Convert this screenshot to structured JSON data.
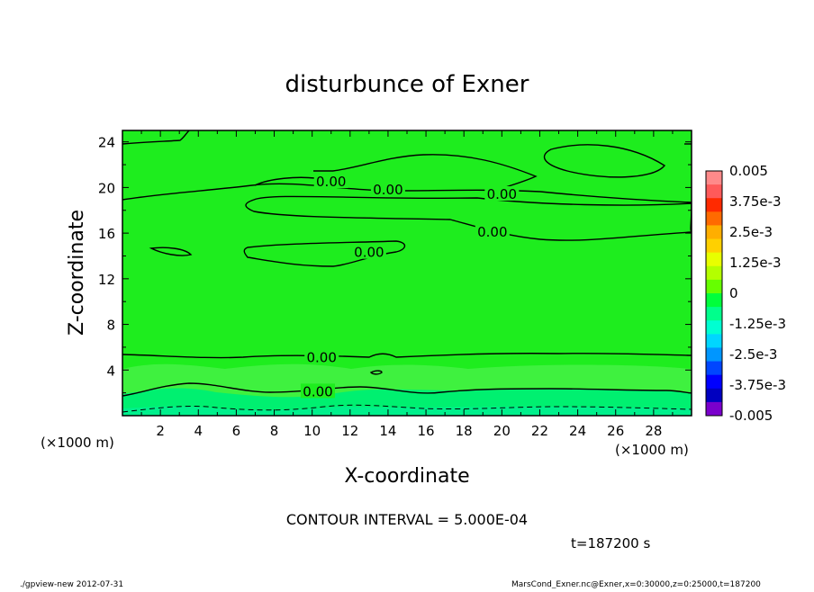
{
  "chart_data": {
    "type": "contour",
    "title": "disturbunce of Exner",
    "xlabel": "X-coordinate",
    "ylabel": "Z-coordinate",
    "x_unit": "(×1000 m)",
    "xlim": [
      0,
      30
    ],
    "ylim": [
      0,
      25
    ],
    "x_ticks": [
      2,
      4,
      6,
      8,
      10,
      12,
      14,
      16,
      18,
      20,
      22,
      24,
      26,
      28
    ],
    "y_ticks": [
      4,
      8,
      12,
      16,
      20,
      24
    ],
    "contour_interval_text": "CONTOUR INTERVAL = 5.000E-04",
    "time_text": "t=187200 s",
    "contour_labels": [
      {
        "text": "0.00",
        "x": 11.0,
        "z": 20.5
      },
      {
        "text": "0.00",
        "x": 14.0,
        "z": 19.8
      },
      {
        "text": "0.00",
        "x": 20.0,
        "z": 19.4
      },
      {
        "text": "0.00",
        "x": 19.5,
        "z": 16.1
      },
      {
        "text": "0.00",
        "x": 13.0,
        "z": 14.3
      },
      {
        "text": "0.00",
        "x": 10.5,
        "z": 5.1
      },
      {
        "text": "0.00",
        "x": 10.3,
        "z": 2.1
      }
    ],
    "colorbar": {
      "ticks": [
        "0.005",
        "3.75e-3",
        "2.5e-3",
        "1.25e-3",
        "0",
        "-1.25e-3",
        "-2.5e-3",
        "-3.75e-3",
        "-0.005"
      ],
      "colors": [
        "#ff8a8a",
        "#ff5a5a",
        "#ff2a00",
        "#ff6a00",
        "#ffae00",
        "#ffd000",
        "#e8ff00",
        "#b4ff00",
        "#66ff00",
        "#00ff3c",
        "#00ff8c",
        "#00ffd2",
        "#00d6ff",
        "#0096ff",
        "#0046ff",
        "#0000ff",
        "#0000c0",
        "#7a00cc"
      ]
    },
    "field_colors": {
      "main": "#1eed1e",
      "lower_band": "#3ff13f",
      "near_surface": "#00f070",
      "surface": "#00f08c"
    }
  },
  "footer": {
    "program": "./gpview-new   2012-07-31",
    "source": "MarsCond_Exner.nc@Exner,x=0:30000,z=0:25000,t=187200"
  }
}
